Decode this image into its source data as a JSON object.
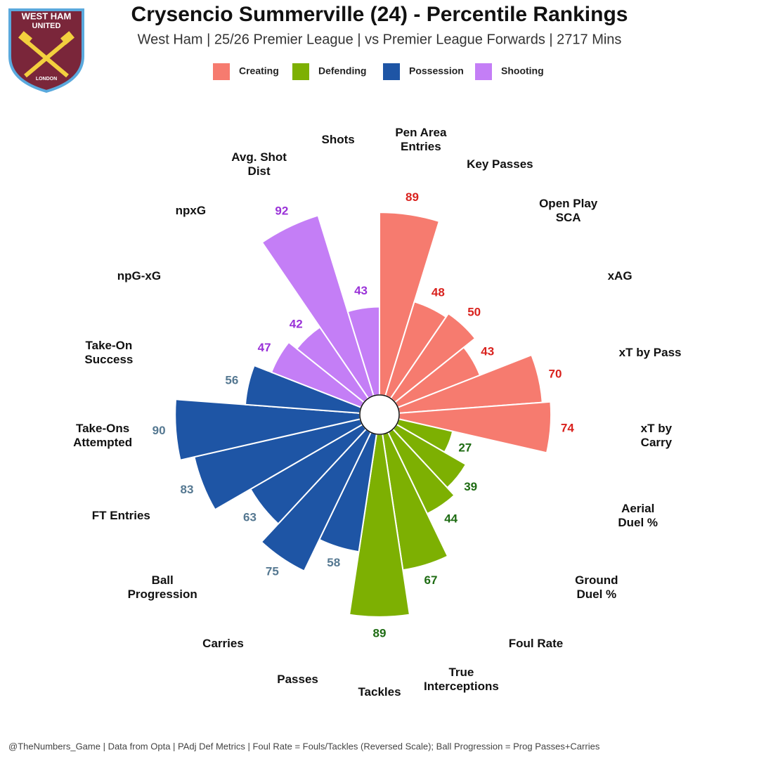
{
  "chart_data": {
    "type": "radial_bar",
    "title": "Crysencio Summerville (24) - Percentile Rankings",
    "subtitle": "West Ham | 25/26 Premier League | vs Premier League Forwards | 2717 Mins",
    "logo": {
      "top": "WEST HAM",
      "middle": "UNITED",
      "bottom": "LONDON"
    },
    "footer": "@TheNumbers_Game | Data from Opta | PAdj Def Metrics | Foul Rate = Fouls/Tackles (Reversed Scale); Ball Progression = Prog Passes+Carries",
    "ylim": [
      0,
      100
    ],
    "categories": [
      "Pen Area\nEntries",
      "Key Passes",
      "Open Play\nSCA",
      "xAG",
      "xT by Pass",
      "xT by\nCarry",
      "Aerial\nDuel %",
      "Ground\nDuel %",
      "Foul Rate",
      "True\nInterceptions",
      "Tackles",
      "Passes",
      "Carries",
      "Ball\nProgression",
      "FT Entries",
      "Take-Ons\nAttempted",
      "Take-On\nSuccess",
      "npG-xG",
      "npxG",
      "Avg. Shot\nDist",
      "Shots"
    ],
    "series": [
      {
        "name": "Creating",
        "color": "#f67b6f",
        "label_color": "#d9221e",
        "values": [
          89,
          48,
          50,
          43,
          70,
          74,
          null,
          null,
          null,
          null,
          null,
          null,
          null,
          null,
          null,
          null,
          null,
          null,
          null,
          null,
          null
        ]
      },
      {
        "name": "Defending",
        "color": "#7db002",
        "label_color": "#1d6b12",
        "values": [
          null,
          null,
          null,
          null,
          null,
          null,
          27,
          39,
          44,
          67,
          89,
          null,
          null,
          null,
          null,
          null,
          null,
          null,
          null,
          null,
          null
        ]
      },
      {
        "name": "Possession",
        "color": "#1e55a5",
        "label_color": "#557891",
        "values": [
          null,
          null,
          null,
          null,
          null,
          null,
          null,
          null,
          null,
          null,
          null,
          58,
          75,
          63,
          83,
          90,
          56,
          null,
          null,
          null,
          null
        ]
      },
      {
        "name": "Shooting",
        "color": "#c47ef6",
        "label_color": "#9a32d8",
        "values": [
          null,
          null,
          null,
          null,
          null,
          null,
          null,
          null,
          null,
          null,
          null,
          null,
          null,
          null,
          null,
          null,
          null,
          47,
          42,
          92,
          43
        ]
      }
    ]
  }
}
